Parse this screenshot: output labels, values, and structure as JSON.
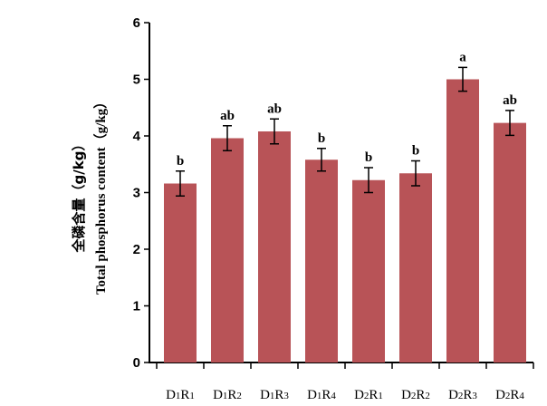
{
  "chart_data": {
    "type": "bar",
    "title": "",
    "ylabel_cn": "全磷含量（g/kg）",
    "ylabel_en": "Total phosphorus content（g/kg）",
    "xlabel": "",
    "ylim": [
      0,
      6
    ],
    "yticks": [
      "0",
      "1",
      "2",
      "3",
      "4",
      "5",
      "6"
    ],
    "grid": false,
    "bar_color": "#b85357",
    "categories": [
      {
        "letter1": "D",
        "sub1": "1",
        "letter2": "R",
        "sub2": "1"
      },
      {
        "letter1": "D",
        "sub1": "1",
        "letter2": "R",
        "sub2": "2"
      },
      {
        "letter1": "D",
        "sub1": "1",
        "letter2": "R",
        "sub2": "3"
      },
      {
        "letter1": "D",
        "sub1": "1",
        "letter2": "R",
        "sub2": "4"
      },
      {
        "letter1": "D",
        "sub1": "2",
        "letter2": "R",
        "sub2": "1"
      },
      {
        "letter1": "D",
        "sub1": "2",
        "letter2": "R",
        "sub2": "2"
      },
      {
        "letter1": "D",
        "sub1": "2",
        "letter2": "R",
        "sub2": "3"
      },
      {
        "letter1": "D",
        "sub1": "2",
        "letter2": "R",
        "sub2": "4"
      }
    ],
    "values": [
      3.16,
      3.96,
      4.08,
      3.58,
      3.22,
      3.34,
      5.0,
      4.23
    ],
    "errors": [
      0.22,
      0.22,
      0.22,
      0.2,
      0.22,
      0.22,
      0.21,
      0.22
    ],
    "significance": [
      "b",
      "ab",
      "ab",
      "b",
      "b",
      "b",
      "a",
      "ab"
    ]
  }
}
